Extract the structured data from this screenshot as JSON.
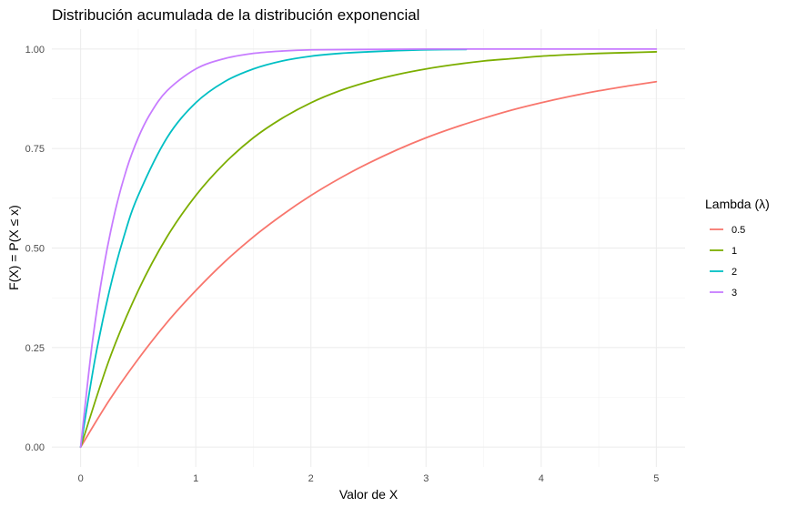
{
  "chart_data": {
    "type": "line",
    "title": "Distribución acumulada de la distribución exponencial",
    "xlabel": "Valor de X",
    "ylabel": "F(X) = P(X ≤ x)",
    "xlim": [
      -0.25,
      5.25
    ],
    "ylim": [
      -0.05,
      1.05
    ],
    "x_ticks": [
      0,
      1,
      2,
      3,
      4,
      5
    ],
    "y_ticks": [
      0.0,
      0.25,
      0.5,
      0.75,
      1.0
    ],
    "x_tick_labels": [
      "0",
      "1",
      "2",
      "3",
      "4",
      "5"
    ],
    "y_tick_labels": [
      "0.00",
      "0.25",
      "0.50",
      "0.75",
      "1.00"
    ],
    "grid": true,
    "legend": {
      "title": "Lambda (λ)",
      "placement": "right"
    },
    "series": [
      {
        "name": "0.5",
        "color": "#F8766D",
        "x": [
          0,
          0.25,
          0.5,
          0.75,
          1,
          1.25,
          1.5,
          1.75,
          2,
          2.25,
          2.5,
          2.75,
          3,
          3.25,
          3.5,
          3.75,
          4,
          4.25,
          4.5,
          4.75,
          5
        ],
        "values": [
          0,
          0.118,
          0.221,
          0.313,
          0.393,
          0.465,
          0.528,
          0.583,
          0.632,
          0.675,
          0.713,
          0.747,
          0.777,
          0.803,
          0.826,
          0.847,
          0.865,
          0.881,
          0.895,
          0.907,
          0.918
        ]
      },
      {
        "name": "1",
        "color": "#7CAE00",
        "x": [
          0,
          0.25,
          0.5,
          0.75,
          1,
          1.25,
          1.5,
          1.75,
          2,
          2.25,
          2.5,
          2.75,
          3,
          3.25,
          3.5,
          3.75,
          4,
          4.25,
          4.5,
          4.75,
          5
        ],
        "values": [
          0,
          0.221,
          0.393,
          0.528,
          0.632,
          0.713,
          0.777,
          0.826,
          0.865,
          0.895,
          0.918,
          0.936,
          0.95,
          0.961,
          0.97,
          0.976,
          0.982,
          0.986,
          0.989,
          0.991,
          0.993
        ]
      },
      {
        "name": "2",
        "color": "#00BFC4",
        "x": [
          0,
          0.125,
          0.25,
          0.375,
          0.5,
          0.75,
          1,
          1.25,
          1.5,
          1.75,
          2,
          2.25,
          2.5,
          2.75,
          3,
          3.35
        ],
        "values": [
          0,
          0.221,
          0.393,
          0.528,
          0.632,
          0.777,
          0.865,
          0.918,
          0.95,
          0.97,
          0.982,
          0.989,
          0.993,
          0.996,
          0.998,
          0.999
        ]
      },
      {
        "name": "3",
        "color": "#C77CFF",
        "x": [
          0,
          0.1,
          0.2,
          0.3,
          0.4,
          0.5,
          0.6,
          0.75,
          1,
          1.25,
          1.5,
          1.75,
          2,
          2.5,
          3,
          3.5,
          4,
          4.5,
          5
        ],
        "values": [
          0,
          0.259,
          0.451,
          0.593,
          0.699,
          0.777,
          0.835,
          0.895,
          0.95,
          0.976,
          0.989,
          0.995,
          0.998,
          0.999,
          1.0,
          1.0,
          1.0,
          1.0,
          1.0
        ]
      }
    ]
  }
}
